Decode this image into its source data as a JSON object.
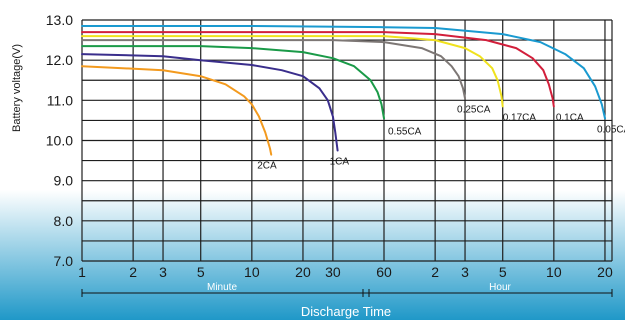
{
  "chart_data": {
    "type": "line",
    "title": "",
    "xlabel": "Discharge Time",
    "ylabel": "Battery voltage(V)",
    "ylim": [
      7.0,
      13.0
    ],
    "y_ticks": [
      "7.0",
      "8.0",
      "9.0",
      "10.0",
      "11.0",
      "12.0",
      "13.0"
    ],
    "x_scale": "log",
    "x_unit_note": "x values in minutes; ticks 1–60 are minutes, ticks 2–20 are hours",
    "x_tick_labels": [
      "1",
      "2",
      "3",
      "5",
      "10",
      "20",
      "30",
      "60",
      "2",
      "3",
      "5",
      "10",
      "20"
    ],
    "segments": {
      "minute_label": "Minute",
      "hour_label": "Hour"
    },
    "grid": true,
    "legend": "none",
    "colors": {
      "grid": "#1e1e1e",
      "band_top": "#ffffff",
      "band_bottom": "#1f98c8",
      "xlabel_color": "#ffffff"
    },
    "series": [
      {
        "name": "2CA",
        "color": "#f39a1e",
        "x": [
          1,
          3,
          5,
          7,
          9,
          10,
          11,
          12,
          12.8,
          13
        ],
        "y": [
          11.85,
          11.75,
          11.6,
          11.4,
          11.1,
          10.9,
          10.6,
          10.2,
          9.8,
          9.65
        ]
      },
      {
        "name": "1CA",
        "color": "#3a2e8c",
        "x": [
          1,
          3,
          5,
          10,
          15,
          20,
          25,
          28,
          30,
          31,
          32
        ],
        "y": [
          12.15,
          12.1,
          12.0,
          11.88,
          11.75,
          11.6,
          11.3,
          11.0,
          10.6,
          10.2,
          9.75
        ]
      },
      {
        "name": "0.55CA",
        "color": "#1a9a48",
        "x": [
          1,
          3,
          5,
          10,
          20,
          30,
          40,
          50,
          55,
          58,
          60
        ],
        "y": [
          12.35,
          12.35,
          12.35,
          12.3,
          12.2,
          12.05,
          11.85,
          11.5,
          11.2,
          10.9,
          10.55
        ]
      },
      {
        "name": "0.25CA",
        "color": "#7d7775",
        "x": [
          1,
          5,
          10,
          30,
          60,
          100,
          130,
          150,
          165,
          175,
          180
        ],
        "y": [
          12.5,
          12.5,
          12.5,
          12.5,
          12.45,
          12.3,
          12.1,
          11.85,
          11.6,
          11.3,
          11.05
        ]
      },
      {
        "name": "0.17CA",
        "color": "#f0e21e",
        "x": [
          1,
          10,
          60,
          120,
          180,
          220,
          260,
          280,
          295,
          300
        ],
        "y": [
          12.6,
          12.6,
          12.6,
          12.5,
          12.3,
          12.1,
          11.8,
          11.5,
          11.1,
          10.85
        ]
      },
      {
        "name": "0.1CA",
        "color": "#d21f3b",
        "x": [
          1,
          10,
          60,
          120,
          240,
          360,
          450,
          520,
          560,
          590,
          600
        ],
        "y": [
          12.7,
          12.7,
          12.7,
          12.65,
          12.5,
          12.3,
          12.05,
          11.75,
          11.4,
          11.05,
          10.85
        ]
      },
      {
        "name": "0.05CA",
        "color": "#1a9ad0",
        "x": [
          1,
          10,
          60,
          120,
          300,
          500,
          700,
          900,
          1050,
          1150,
          1200
        ],
        "y": [
          12.85,
          12.85,
          12.82,
          12.8,
          12.65,
          12.45,
          12.15,
          11.8,
          11.35,
          10.9,
          10.55
        ]
      }
    ]
  }
}
